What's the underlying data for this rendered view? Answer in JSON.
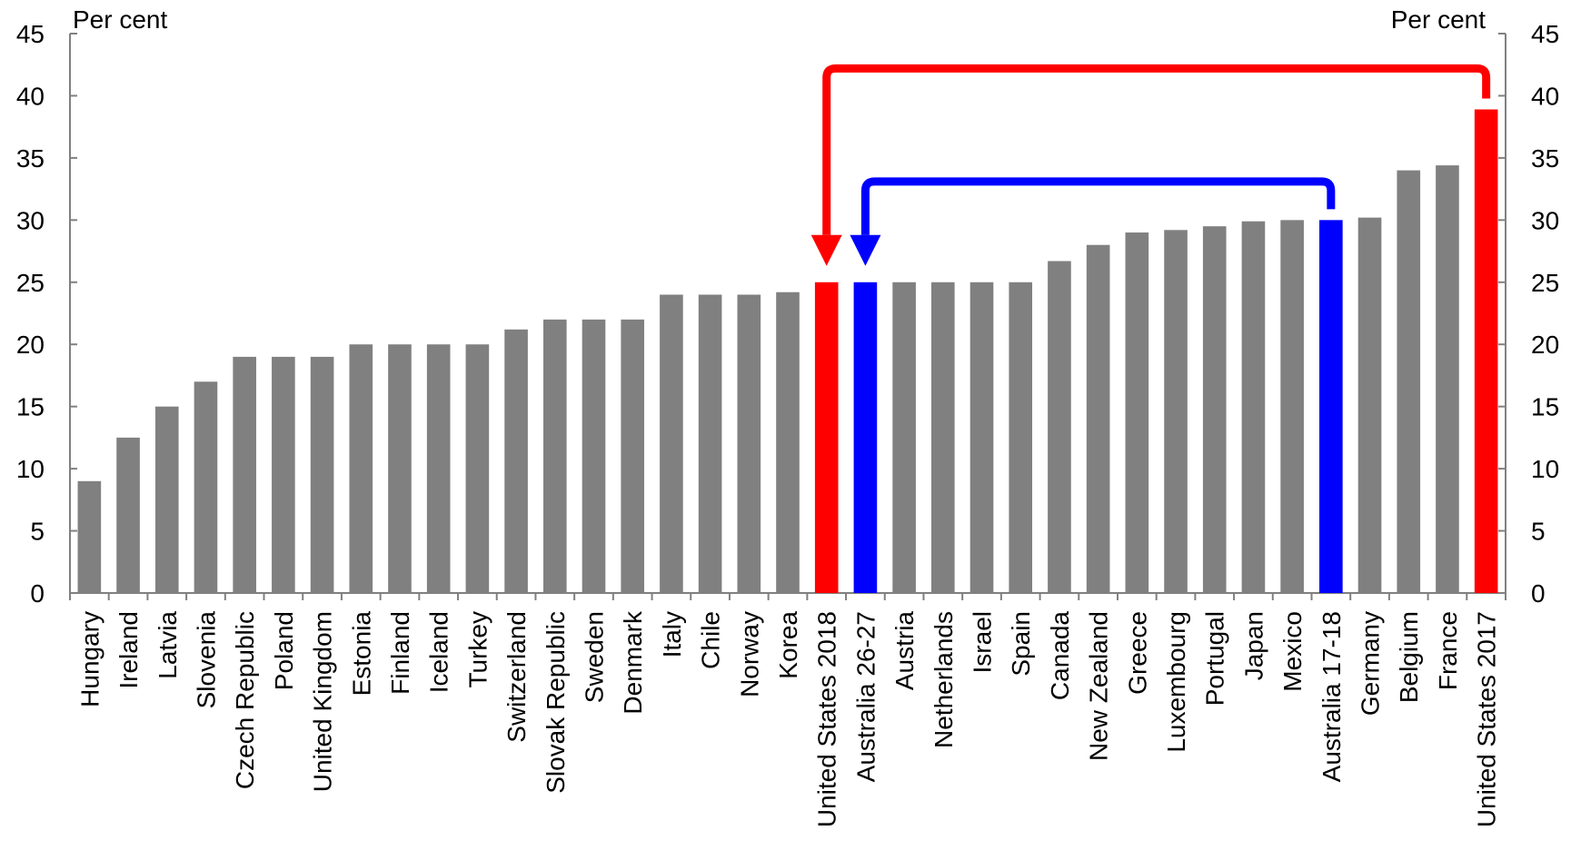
{
  "chart_data": {
    "type": "bar",
    "categories": [
      "Hungary",
      "Ireland",
      "Latvia",
      "Slovenia",
      "Czech Republic",
      "Poland",
      "United Kingdom",
      "Estonia",
      "Finland",
      "Iceland",
      "Turkey",
      "Switzerland",
      "Slovak Republic",
      "Sweden",
      "Denmark",
      "Italy",
      "Chile",
      "Norway",
      "Korea",
      "United States 2018",
      "Australia 26-27",
      "Austria",
      "Netherlands",
      "Israel",
      "Spain",
      "Canada",
      "New Zealand",
      "Greece",
      "Luxembourg",
      "Portugal",
      "Japan",
      "Mexico",
      "Australia 17-18",
      "Germany",
      "Belgium",
      "France",
      "United States 2017"
    ],
    "values": [
      9,
      12.5,
      15,
      17,
      19,
      19,
      19,
      20,
      20,
      20,
      20,
      21.2,
      22,
      22,
      22,
      24,
      24,
      24,
      24.2,
      25,
      25,
      25,
      25,
      25,
      25,
      26.7,
      28,
      29,
      29.2,
      29.5,
      29.9,
      30,
      30,
      30.2,
      34,
      34.4,
      38.9
    ],
    "bar_colors": [
      "#808080",
      "#808080",
      "#808080",
      "#808080",
      "#808080",
      "#808080",
      "#808080",
      "#808080",
      "#808080",
      "#808080",
      "#808080",
      "#808080",
      "#808080",
      "#808080",
      "#808080",
      "#808080",
      "#808080",
      "#808080",
      "#808080",
      "#ff0000",
      "#0000ff",
      "#808080",
      "#808080",
      "#808080",
      "#808080",
      "#808080",
      "#808080",
      "#808080",
      "#808080",
      "#808080",
      "#808080",
      "#808080",
      "#0000ff",
      "#808080",
      "#808080",
      "#808080",
      "#ff0000"
    ],
    "ylim": [
      0,
      45
    ],
    "yticks": [
      "0",
      "5",
      "10",
      "15",
      "20",
      "25",
      "30",
      "35",
      "40",
      "45"
    ],
    "yunit_left": "Per cent",
    "yunit_right": "Per cent",
    "grid": false,
    "legend": "none",
    "annotations": [
      {
        "type": "arrow",
        "from_category": "United States 2017",
        "to_category": "United States 2018",
        "color": "#ff0000",
        "level": 42.2
      },
      {
        "type": "arrow",
        "from_category": "Australia 17-18",
        "to_category": "Australia 26-27",
        "color": "#0000ff",
        "level": 33.1
      }
    ]
  }
}
